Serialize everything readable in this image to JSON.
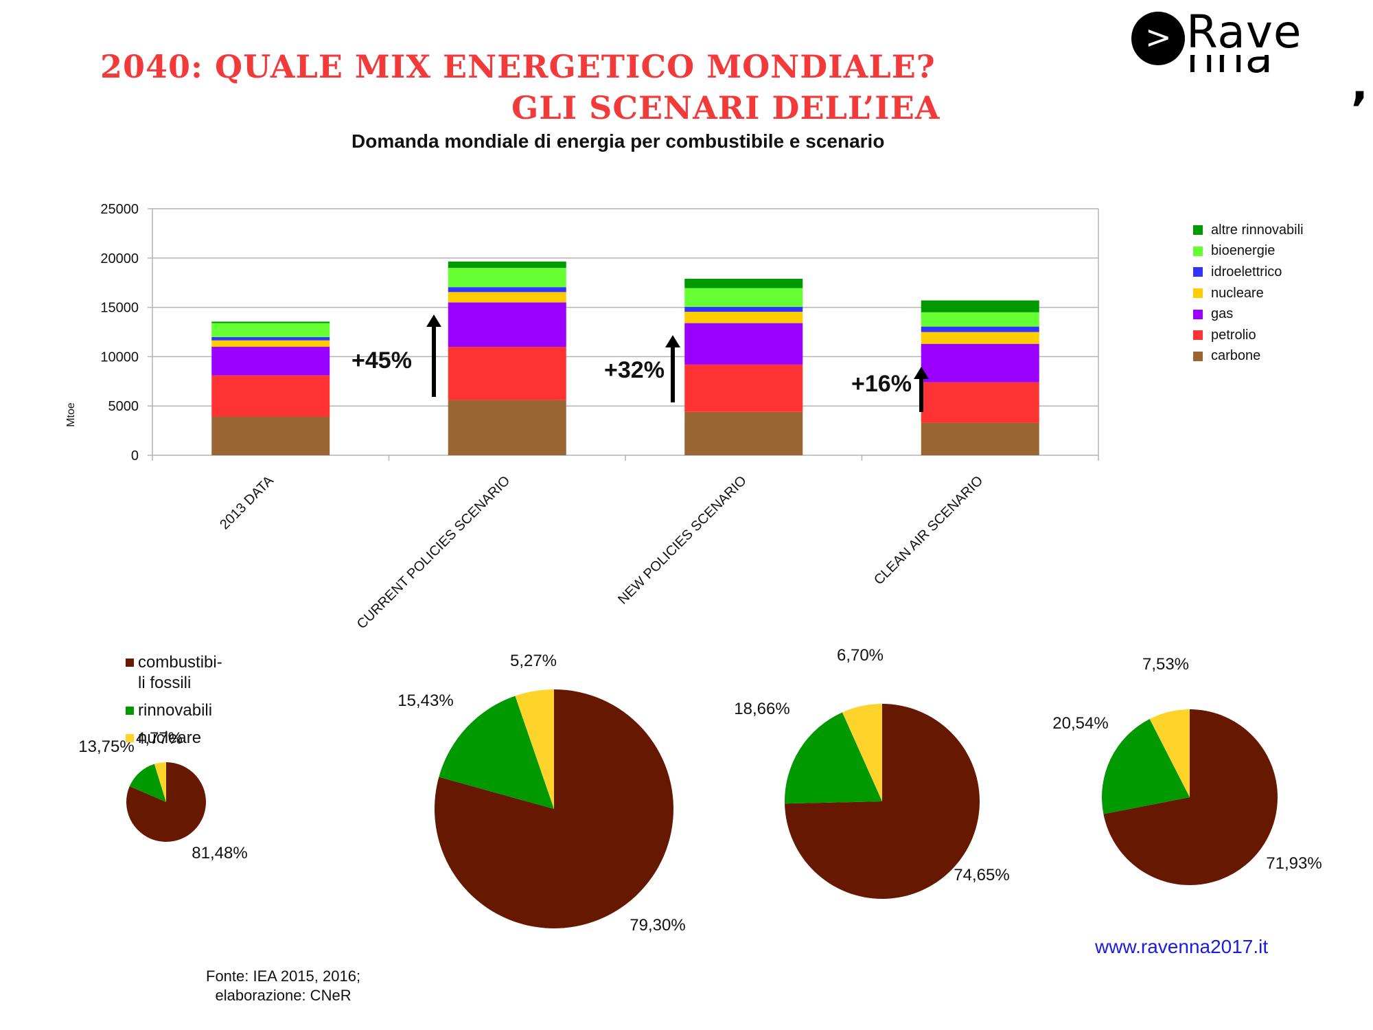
{
  "header": {
    "title_line1": "2040: QUALE MIX ENERGETICO MONDIALE?",
    "title_line2": "GLI SCENARI DELL’IEA",
    "subtitle": "Domanda mondiale di energia per combustibile e scenario"
  },
  "logo": {
    "arrow": ">",
    "text_line1": "Rave",
    "text_line2": "nna",
    "mark": ","
  },
  "colors": {
    "title": "#f23a3a",
    "carbone": "#996633",
    "petrolio": "#ff3333",
    "gas": "#9900ff",
    "nucleare": "#ffcc00",
    "idroelettrico": "#3333ff",
    "bioenergie": "#66ff33",
    "altre_rinnovabili": "#009900",
    "fossili": "#661900",
    "rinnovabili": "#009900",
    "nucleare_pie": "#ffd42a",
    "website": "#1a1ae6"
  },
  "chart_data": [
    {
      "type": "bar",
      "stacked": true,
      "title": "Domanda mondiale di energia per combustibile e scenario",
      "ylabel": "Mtoe",
      "xlabel": "",
      "ylim": [
        0,
        25000
      ],
      "yticks": [
        0,
        5000,
        10000,
        15000,
        20000,
        25000
      ],
      "grid": true,
      "legend_position": "right",
      "categories": [
        "2013 DATA",
        "CURRENT POLICIES SCENARIO",
        "NEW POLICIES SCENARIO",
        "CLEAN AIR SCENARIO"
      ],
      "series": [
        {
          "key": "carbone",
          "name": "carbone",
          "values": [
            3900,
            5600,
            4400,
            3300
          ]
        },
        {
          "key": "petrolio",
          "name": "petrolio",
          "values": [
            4200,
            5400,
            4800,
            4100
          ]
        },
        {
          "key": "gas",
          "name": "gas",
          "values": [
            2900,
            4500,
            4200,
            3900
          ]
        },
        {
          "key": "nucleare",
          "name": "nucleare",
          "values": [
            650,
            1050,
            1150,
            1200
          ]
        },
        {
          "key": "idroelettrico",
          "name": "idroelettrico",
          "values": [
            330,
            500,
            500,
            550
          ]
        },
        {
          "key": "bioenergie",
          "name": "bioenergie",
          "values": [
            1420,
            1950,
            1900,
            1450
          ]
        },
        {
          "key": "altre_rinnovabili",
          "name": "altre rinnovabili",
          "values": [
            150,
            650,
            950,
            1200
          ]
        }
      ],
      "annotations": [
        {
          "text": "+45%",
          "category_index": 1
        },
        {
          "text": "+32%",
          "category_index": 2
        },
        {
          "text": "+16%",
          "category_index": 3
        }
      ]
    },
    {
      "type": "pie",
      "legend": [
        "combustibi-li fossili",
        "rinnovabili",
        "nucleare"
      ],
      "pies": [
        {
          "name": "2013 DATA",
          "values": [
            81.48,
            13.75,
            4.77
          ],
          "labels": [
            "81,48%",
            "13,75%",
            "4,77%"
          ]
        },
        {
          "name": "CURRENT POLICIES SCENARIO",
          "values": [
            79.3,
            15.43,
            5.27
          ],
          "labels": [
            "79,30%",
            "15,43%",
            "5,27%"
          ]
        },
        {
          "name": "NEW POLICIES SCENARIO",
          "values": [
            74.65,
            18.66,
            6.7
          ],
          "labels": [
            "74,65%",
            "18,66%",
            "6,70%"
          ]
        },
        {
          "name": "CLEAN AIR SCENARIO",
          "values": [
            71.93,
            20.54,
            7.53
          ],
          "labels": [
            "71,93%",
            "20,54%",
            "7,53%"
          ]
        }
      ]
    }
  ],
  "pie_legend": {
    "fossili_line1": "combustibi-",
    "fossili_line2": "li fossili",
    "rinnovabili": "rinnovabili",
    "nucleare": "nucleare"
  },
  "footer": {
    "source_line1": "Fonte: IEA 2015, 2016;",
    "source_line2": "elaborazione: CNeR",
    "website": "www.ravenna2017.it"
  }
}
